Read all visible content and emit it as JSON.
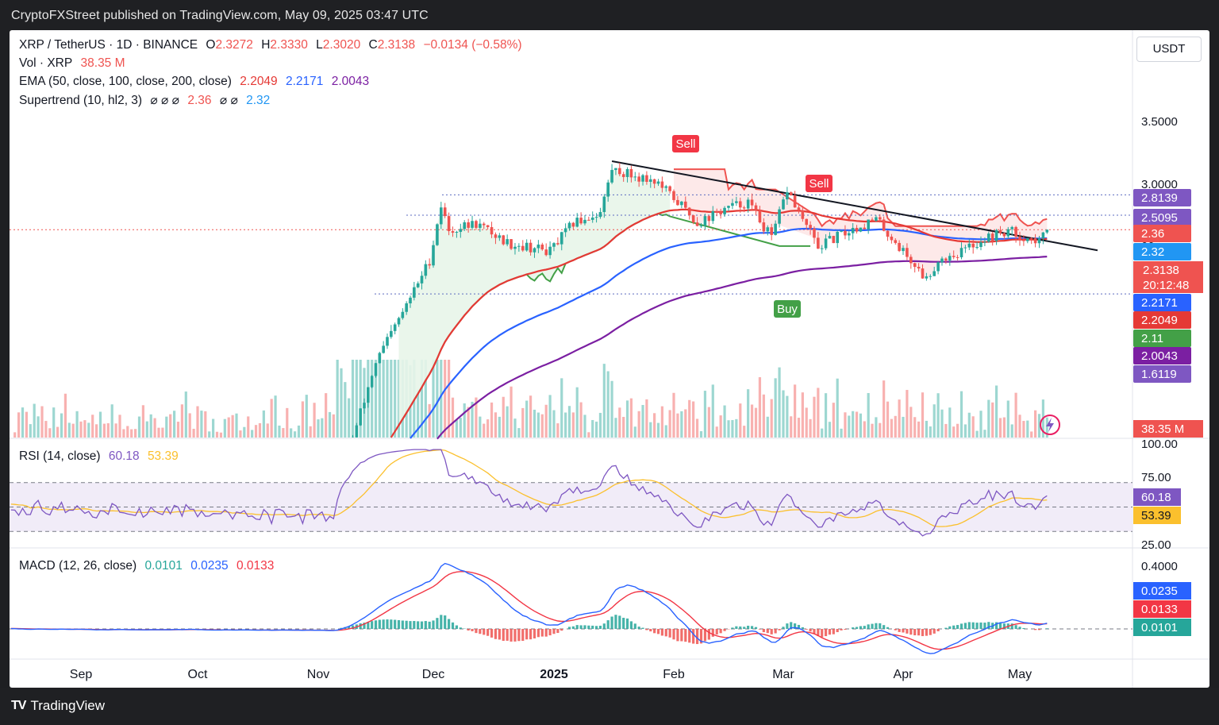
{
  "header": {
    "publisher_text": "CryptoFXStreet published on TradingView.com, May 09, 2025 03:47 UTC"
  },
  "footer": {
    "brand": "TradingView"
  },
  "currency_button": "USDT",
  "legend": {
    "symbol": "XRP / TetherUS · 1D · BINANCE",
    "o_label": "O",
    "o": "2.3272",
    "h_label": "H",
    "h": "2.3330",
    "l_label": "L",
    "l": "2.3020",
    "c_label": "C",
    "c": "2.3138",
    "change": "−0.0134 (−0.58%)",
    "vol_label": "Vol · XRP",
    "vol": "38.35 M",
    "ema_label": "EMA (50, close, 100, close, 200, close)",
    "ema50": "2.2049",
    "ema100": "2.2171",
    "ema200": "2.0043",
    "supertrend_label": "Supertrend (10, hl2, 3)",
    "st_dots1": "⌀ ⌀ ⌀",
    "st_up": "2.36",
    "st_dots2": "⌀ ⌀",
    "st_down": "2.32",
    "rsi_label": "RSI (14, close)",
    "rsi": "60.18",
    "rsi_ma": "53.39",
    "macd_label": "MACD (12, 26, close)",
    "macd_hist": "0.0101",
    "macd_line": "0.0235",
    "macd_signal": "0.0133"
  },
  "colors": {
    "up": "#26a69a",
    "down": "#ef5350",
    "ema50": "#e53935",
    "ema100": "#2962ff",
    "ema200": "#7b1fa2",
    "st_up": "#43a047",
    "st_down": "#ef5350",
    "rsi": "#7e57c2",
    "rsi_ma": "#fbc02d",
    "macd": "#2962ff",
    "signal": "#f23645",
    "trendline": "#131722"
  },
  "chart_data": {
    "type": "candlestick",
    "title": "XRP / TetherUS · 1D · BINANCE",
    "x_ticks": [
      "Sep",
      "Oct",
      "Nov",
      "Dec",
      "2025",
      "Feb",
      "Mar",
      "Apr",
      "May"
    ],
    "price_ticks": [
      "3.5000",
      "3.0000",
      "00"
    ],
    "rsi_ticks": [
      "100.00",
      "75.00",
      "25.00"
    ],
    "macd_ticks": [
      "0.4000"
    ],
    "price_labels": [
      {
        "text": "2.8139",
        "color": "#7e57c2"
      },
      {
        "text": "2.5095",
        "color": "#7e57c2"
      },
      {
        "text": "2.36",
        "color": "#ef5350"
      },
      {
        "text": "2.32",
        "color": "#2196f3"
      },
      {
        "text": "2.3138",
        "text2": "20:12:48",
        "color": "#ef5350"
      },
      {
        "text": "2.2171",
        "color": "#2962ff"
      },
      {
        "text": "2.2049",
        "color": "#e53935"
      },
      {
        "text": "2.11",
        "color": "#43a047"
      },
      {
        "text": "2.0043",
        "color": "#7b1fa2"
      },
      {
        "text": "1.6119",
        "color": "#7e57c2"
      }
    ],
    "volume_label": {
      "text": "38.35 M",
      "color": "#ef5350"
    },
    "rsi_labels": [
      {
        "text": "60.18",
        "color": "#7e57c2"
      },
      {
        "text": "53.39",
        "color": "#fbc02d"
      }
    ],
    "macd_labels": [
      {
        "text": "0.0235",
        "color": "#2962ff"
      },
      {
        "text": "0.0133",
        "color": "#f23645"
      },
      {
        "text": "0.0101",
        "color": "#26a69a"
      }
    ],
    "signals": [
      {
        "text": "Sell",
        "kind": "sell"
      },
      {
        "text": "Sell",
        "kind": "sell"
      },
      {
        "text": "Buy",
        "kind": "buy"
      }
    ],
    "horizontal_levels": [
      2.8139,
      2.5095,
      1.6119
    ],
    "last_price": 2.3138,
    "trendline": {
      "from": {
        "date": "2025-01-16",
        "price": 3.4
      },
      "to": {
        "date": "2025-05-21",
        "price": 2.06
      }
    },
    "price_path": [
      {
        "date": "2024-08-01",
        "price": 0.6
      },
      {
        "date": "2024-10-01",
        "price": 0.55
      },
      {
        "date": "2024-11-05",
        "price": 0.5
      },
      {
        "date": "2024-11-16",
        "price": 1.1
      },
      {
        "date": "2024-11-23",
        "price": 1.45
      },
      {
        "date": "2024-11-30",
        "price": 1.95
      },
      {
        "date": "2024-12-03",
        "price": 2.65
      },
      {
        "date": "2024-12-05",
        "price": 2.3
      },
      {
        "date": "2024-12-12",
        "price": 2.4
      },
      {
        "date": "2024-12-20",
        "price": 2.15
      },
      {
        "date": "2024-12-31",
        "price": 2.05
      },
      {
        "date": "2025-01-06",
        "price": 2.4
      },
      {
        "date": "2025-01-13",
        "price": 2.55
      },
      {
        "date": "2025-01-16",
        "price": 3.25
      },
      {
        "date": "2025-01-21",
        "price": 3.15
      },
      {
        "date": "2025-01-27",
        "price": 3.05
      },
      {
        "date": "2025-02-03",
        "price": 2.65
      },
      {
        "date": "2025-02-07",
        "price": 2.4
      },
      {
        "date": "2025-02-14",
        "price": 2.6
      },
      {
        "date": "2025-02-20",
        "price": 2.7
      },
      {
        "date": "2025-02-26",
        "price": 2.2
      },
      {
        "date": "2025-03-02",
        "price": 2.9
      },
      {
        "date": "2025-03-05",
        "price": 2.55
      },
      {
        "date": "2025-03-10",
        "price": 2.1
      },
      {
        "date": "2025-03-18",
        "price": 2.3
      },
      {
        "date": "2025-03-25",
        "price": 2.45
      },
      {
        "date": "2025-03-31",
        "price": 2.1
      },
      {
        "date": "2025-04-07",
        "price": 1.75
      },
      {
        "date": "2025-04-10",
        "price": 1.95
      },
      {
        "date": "2025-04-16",
        "price": 2.05
      },
      {
        "date": "2025-04-22",
        "price": 2.2
      },
      {
        "date": "2025-04-28",
        "price": 2.3
      },
      {
        "date": "2025-05-06",
        "price": 2.15
      },
      {
        "date": "2025-05-08",
        "price": 2.3138
      }
    ]
  }
}
